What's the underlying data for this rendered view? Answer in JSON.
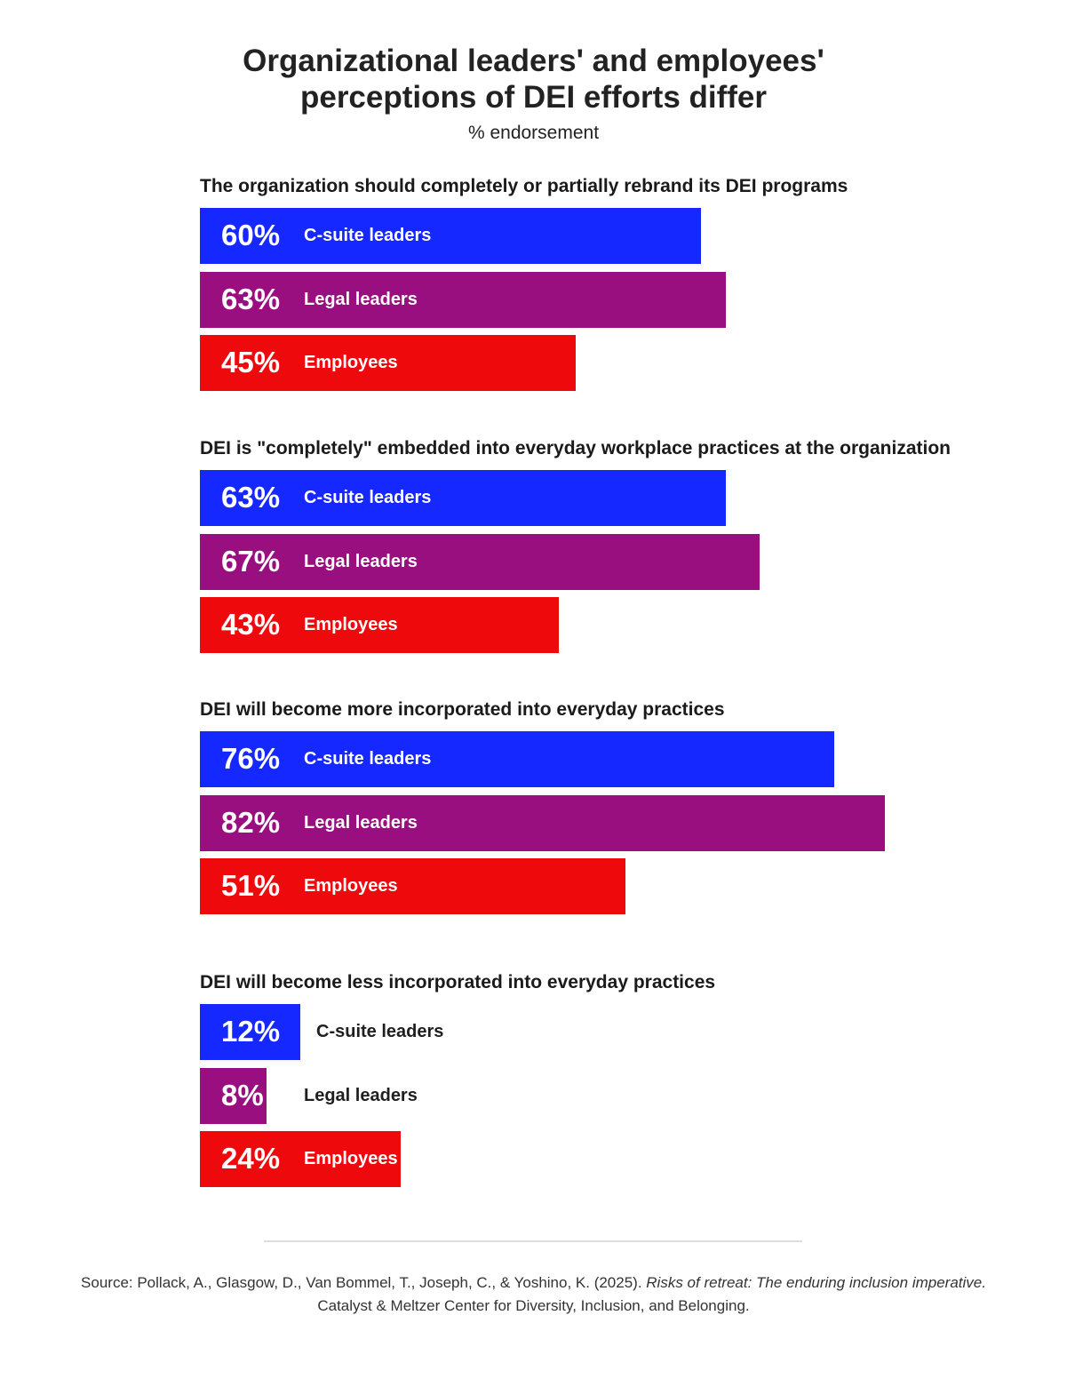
{
  "title": "Organizational leaders' and employees'\nperceptions of DEI efforts differ",
  "subtitle": "% endorsement",
  "colors": {
    "C-suite leaders": "#1428ff",
    "Legal leaders": "#9a0f80",
    "Employees": "#ee0a0c"
  },
  "chart_data": {
    "type": "bar",
    "orientation": "horizontal",
    "unit": "%",
    "groups": [
      {
        "question": "The organization should completely or partially rebrand its DEI programs",
        "bars": [
          {
            "category": "C-suite leaders",
            "value": 60,
            "label": "60%"
          },
          {
            "category": "Legal leaders",
            "value": 63,
            "label": "63%"
          },
          {
            "category": "Employees",
            "value": 45,
            "label": "45%"
          }
        ]
      },
      {
        "question": "DEI is \"completely\" embedded into everyday workplace practices at the organization",
        "bars": [
          {
            "category": "C-suite leaders",
            "value": 63,
            "label": "63%"
          },
          {
            "category": "Legal leaders",
            "value": 67,
            "label": "67%"
          },
          {
            "category": "Employees",
            "value": 43,
            "label": "43%"
          }
        ]
      },
      {
        "question": "DEI will become more incorporated into everyday practices",
        "bars": [
          {
            "category": "C-suite leaders",
            "value": 76,
            "label": "76%"
          },
          {
            "category": "Legal leaders",
            "value": 82,
            "label": "82%"
          },
          {
            "category": "Employees",
            "value": 51,
            "label": "51%"
          }
        ]
      },
      {
        "question": "DEI will become less incorporated into everyday practices",
        "bars": [
          {
            "category": "C-suite leaders",
            "value": 12,
            "label": "12%"
          },
          {
            "category": "Legal leaders",
            "value": 8,
            "label": "8%"
          },
          {
            "category": "Employees",
            "value": 24,
            "label": "24%"
          }
        ]
      }
    ]
  },
  "source": {
    "prefix": "Source: Pollack, A., Glasgow, D., Van Bommel, T., Joseph, C., & Yoshino, K. (2025). ",
    "title_italic": "Risks of retreat: The enduring inclusion imperative.",
    "line2": "Catalyst & Meltzer Center for Diversity, Inclusion, and Belonging."
  }
}
